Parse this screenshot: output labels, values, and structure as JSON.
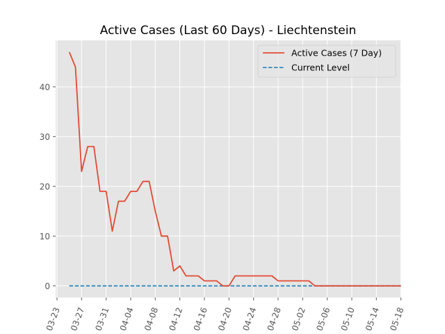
{
  "chart_data": {
    "type": "line",
    "title": "Active Cases (Last 60 Days) - Liechtenstein",
    "xlabel": "",
    "ylabel": "",
    "x_tick_labels": [
      "03-23",
      "03-27",
      "03-31",
      "04-04",
      "04-08",
      "04-12",
      "04-16",
      "04-20",
      "04-24",
      "04-28",
      "05-02",
      "05-06",
      "05-10",
      "05-14",
      "05-18"
    ],
    "yticks": [
      0,
      10,
      20,
      30,
      40
    ],
    "y_tick_labels": [
      "0",
      "10",
      "20",
      "30",
      "40"
    ],
    "ylim": [
      -2.35,
      49.35
    ],
    "grid": true,
    "legend_position": "top-right",
    "dates": [
      "03-25",
      "03-26",
      "03-27",
      "03-28",
      "03-29",
      "03-30",
      "03-31",
      "04-01",
      "04-02",
      "04-03",
      "04-04",
      "04-05",
      "04-06",
      "04-07",
      "04-08",
      "04-09",
      "04-10",
      "04-11",
      "04-12",
      "04-13",
      "04-14",
      "04-15",
      "04-16",
      "04-17",
      "04-18",
      "04-19",
      "04-20",
      "04-21",
      "04-22",
      "04-23",
      "04-24",
      "04-25",
      "04-26",
      "04-27",
      "04-28",
      "04-29",
      "04-30",
      "05-01",
      "05-02",
      "05-03",
      "05-04",
      "05-05",
      "05-06",
      "05-07",
      "05-08",
      "05-09",
      "05-10",
      "05-11",
      "05-12",
      "05-13",
      "05-14",
      "05-15",
      "05-16",
      "05-17",
      "05-18"
    ],
    "series": [
      {
        "name": "Active Cases (7 Day)",
        "color": "#E24A33",
        "style": "solid",
        "values": [
          47,
          44,
          23,
          28,
          28,
          19,
          19,
          11,
          17,
          17,
          19,
          19,
          21,
          21,
          15,
          10,
          10,
          3,
          4,
          2,
          2,
          2,
          1,
          1,
          1,
          0,
          0,
          2,
          2,
          2,
          2,
          2,
          2,
          2,
          1,
          1,
          1,
          1,
          1,
          1,
          0,
          0,
          0,
          0,
          0,
          0,
          0,
          0,
          0,
          0,
          0,
          0,
          0,
          0,
          0
        ]
      },
      {
        "name": "Current Level",
        "color": "#348ABD",
        "style": "dashed",
        "values": [
          0,
          0,
          0,
          0,
          0,
          0,
          0,
          0,
          0,
          0,
          0,
          0,
          0,
          0,
          0,
          0,
          0,
          0,
          0,
          0,
          0,
          0,
          0,
          0,
          0,
          0,
          0,
          0,
          0,
          0,
          0,
          0,
          0,
          0,
          0,
          0,
          0,
          0,
          0,
          0,
          0,
          0,
          0,
          0,
          0,
          0,
          0,
          0,
          0,
          0,
          0,
          0,
          0,
          0,
          0
        ]
      }
    ]
  }
}
